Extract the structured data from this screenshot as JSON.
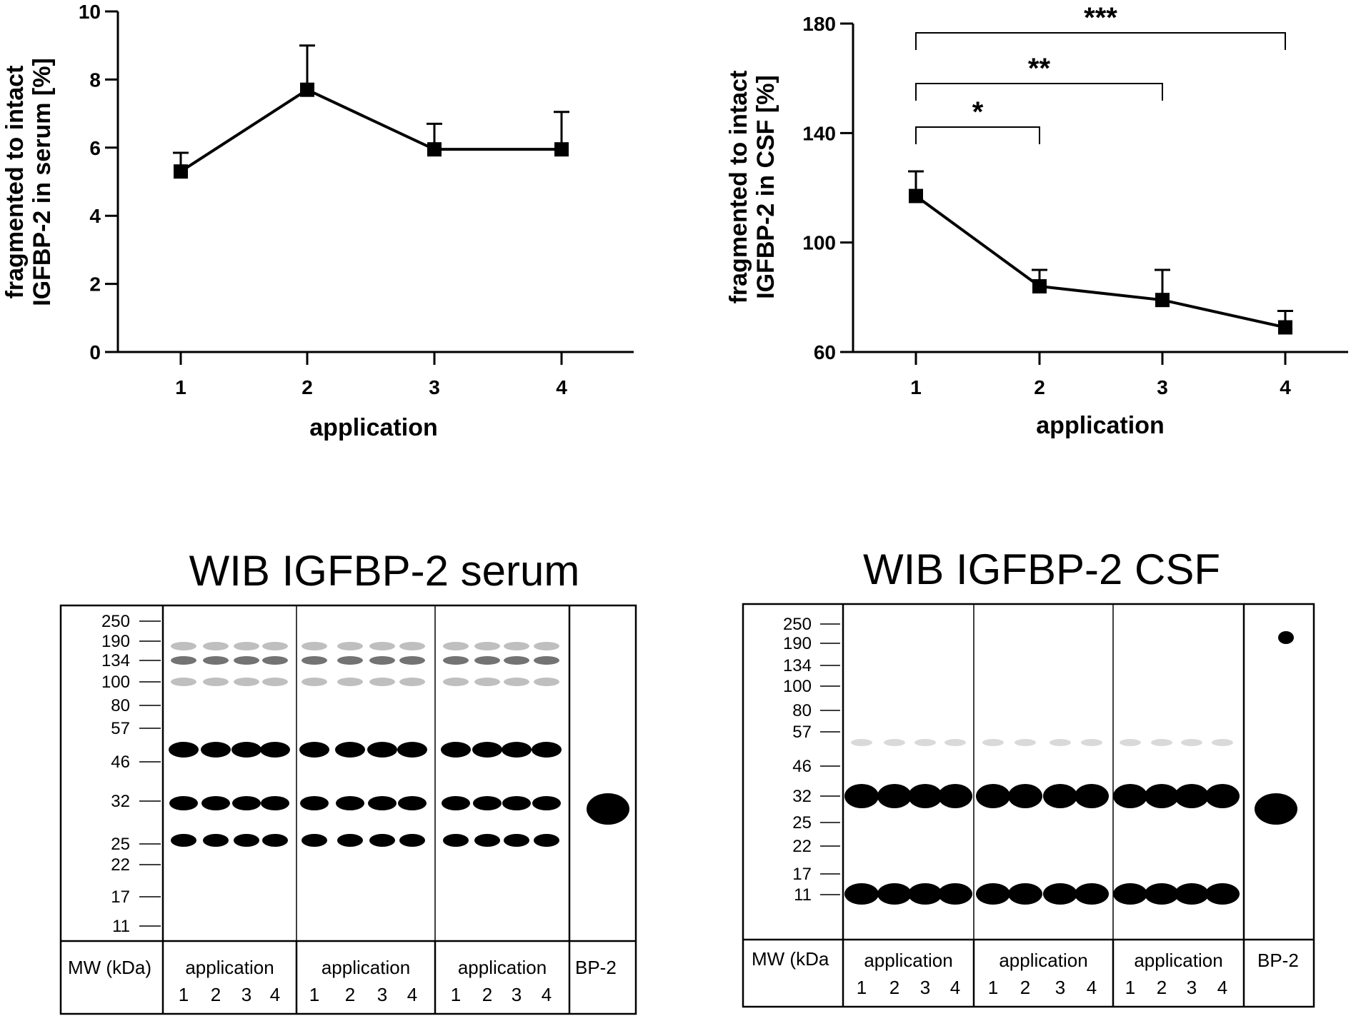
{
  "chart_data": [
    {
      "type": "line",
      "title": "",
      "xlabel": "application",
      "ylabel_lines": [
        "fragmented to intact",
        "IGFBP-2 in serum [%]"
      ],
      "x": [
        1,
        2,
        3,
        4
      ],
      "values": [
        5.3,
        7.7,
        5.95,
        5.95
      ],
      "error_upper": [
        0.55,
        1.3,
        0.75,
        1.1
      ],
      "ylim": [
        0,
        10
      ],
      "yticks": [
        0,
        2,
        4,
        6,
        8,
        10
      ],
      "xticks": [
        "1",
        "2",
        "3",
        "4"
      ],
      "grid": false
    },
    {
      "type": "line",
      "title": "",
      "xlabel": "application",
      "ylabel_lines": [
        "fragmented to intact",
        "IGFBP-2 in CSF [%]"
      ],
      "x": [
        1,
        2,
        3,
        4
      ],
      "values": [
        117,
        84,
        79,
        69
      ],
      "error_upper": [
        9,
        6,
        11,
        6
      ],
      "ylim": [
        60,
        180
      ],
      "yticks": [
        60,
        100,
        140,
        180
      ],
      "xticks": [
        "1",
        "2",
        "3",
        "4"
      ],
      "grid": false,
      "significance": [
        {
          "from": 1,
          "to": 2,
          "label": "*"
        },
        {
          "from": 1,
          "to": 3,
          "label": "**"
        },
        {
          "from": 1,
          "to": 4,
          "label": "***"
        }
      ]
    }
  ],
  "blots": [
    {
      "title": "WIB IGFBP-2 serum",
      "mw_labels": [
        "250",
        "190",
        "134",
        "100",
        "80",
        "57",
        "46",
        "32",
        "25",
        "22",
        "17",
        "11"
      ],
      "mw_axis_label": "MW (kDa)",
      "groups": [
        {
          "label": "application",
          "lanes": [
            "1",
            "2",
            "3",
            "4"
          ]
        },
        {
          "label": "application",
          "lanes": [
            "1",
            "2",
            "3",
            "4"
          ]
        },
        {
          "label": "application",
          "lanes": [
            "1",
            "2",
            "3",
            "4"
          ]
        }
      ],
      "control_label": "BP-2"
    },
    {
      "title": "WIB IGFBP-2 CSF",
      "mw_labels": [
        "250",
        "190",
        "134",
        "100",
        "80",
        "57",
        "46",
        "32",
        "25",
        "22",
        "17",
        "11"
      ],
      "mw_axis_label": "MW (kDa",
      "groups": [
        {
          "label": "application",
          "lanes": [
            "1",
            "2",
            "3",
            "4"
          ]
        },
        {
          "label": "application",
          "lanes": [
            "1",
            "2",
            "3",
            "4"
          ]
        },
        {
          "label": "application",
          "lanes": [
            "1",
            "2",
            "3",
            "4"
          ]
        }
      ],
      "control_label": "BP-2"
    }
  ]
}
